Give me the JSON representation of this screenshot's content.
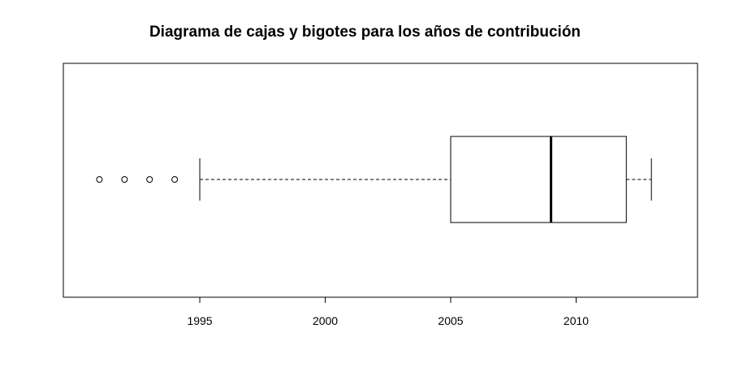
{
  "chart_data": {
    "type": "boxplot",
    "title": "Diagrama de cajas y bigotes para los años de contribución",
    "xlabel": "",
    "ylabel": "",
    "orientation": "horizontal",
    "xlim": [
      1990.5,
      2013.9
    ],
    "ticks": [
      1995,
      2000,
      2005,
      2010
    ],
    "tick_labels": [
      "1995",
      "2000",
      "2005",
      "2010"
    ],
    "box": {
      "whisker_low": 1995,
      "q1": 2005,
      "median": 2009,
      "q3": 2012,
      "whisker_high": 2013
    },
    "outliers": [
      1991,
      1992,
      1993,
      1994
    ],
    "grid": false,
    "colors": {
      "stroke": "#000000",
      "background": "#ffffff"
    }
  }
}
